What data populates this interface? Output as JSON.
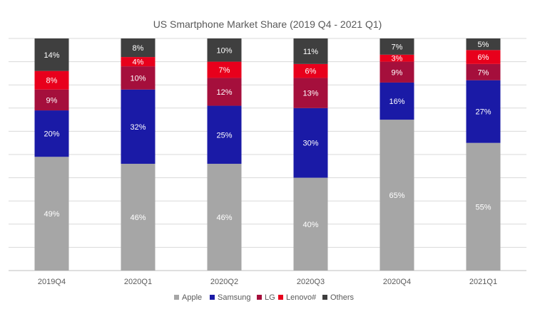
{
  "chart_data": {
    "type": "bar",
    "stacked": true,
    "title": "US Smartphone Market Share (2019 Q4 - 2021 Q1)",
    "xlabel": "",
    "ylabel": "",
    "ylim": [
      0,
      100
    ],
    "grid": true,
    "legend_position": "bottom",
    "categories": [
      "2019Q4",
      "2020Q1",
      "2020Q2",
      "2020Q3",
      "2020Q4",
      "2021Q1"
    ],
    "series": [
      {
        "name": "Apple",
        "color": "#a6a6a6",
        "label_color": "#ffffff",
        "values": [
          49,
          46,
          46,
          40,
          65,
          55
        ]
      },
      {
        "name": "Samsung",
        "color": "#1a1aa6",
        "label_color": "#ffffff",
        "values": [
          20,
          32,
          25,
          30,
          16,
          27
        ]
      },
      {
        "name": "LG",
        "color": "#a50f3c",
        "label_color": "#ffffff",
        "values": [
          9,
          10,
          12,
          13,
          9,
          7
        ]
      },
      {
        "name": "Lenovo#",
        "color": "#e8001c",
        "label_color": "#ffffff",
        "values": [
          8,
          4,
          7,
          6,
          3,
          6
        ]
      },
      {
        "name": "Others",
        "color": "#3f3f3f",
        "label_color": "#ffffff",
        "values": [
          14,
          8,
          10,
          11,
          7,
          5
        ]
      }
    ]
  }
}
